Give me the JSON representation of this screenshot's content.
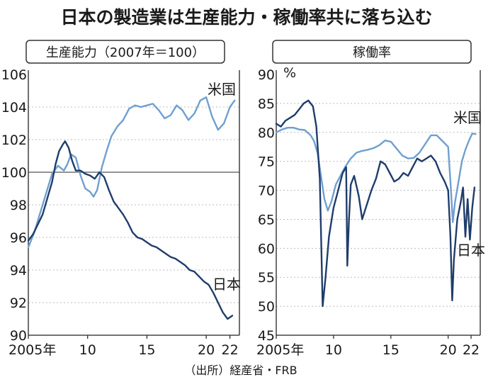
{
  "title": "日本の製造業は生産能力・稼働率共に落ち込む",
  "source": "（出所）経産省・FRB",
  "colors": {
    "japan": "#1f3d6b",
    "us": "#6f9fd0",
    "frame": "#222222",
    "grid": "#bdbdbd",
    "refline": "#555555"
  },
  "chart_data": [
    {
      "type": "line",
      "title": "生産能力（2007年＝100）",
      "xlim": [
        2005,
        2022.8
      ],
      "ylim": [
        90,
        106
      ],
      "yticks": [
        90,
        92,
        94,
        96,
        98,
        100,
        102,
        104,
        106
      ],
      "xticks": [
        {
          "value": 2005,
          "label": "2005年"
        },
        {
          "value": 2010,
          "label": "10"
        },
        {
          "value": 2015,
          "label": "15"
        },
        {
          "value": 2020,
          "label": "20"
        },
        {
          "value": 2022,
          "label": "22"
        }
      ],
      "grid": "dashed horizontal",
      "reference_line": 100,
      "series": [
        {
          "name": "米国",
          "x": [
            2005.0,
            2005.5,
            2006.0,
            2006.5,
            2007.0,
            2007.5,
            2008.0,
            2008.3,
            2008.6,
            2009.0,
            2009.4,
            2009.8,
            2010.2,
            2010.5,
            2010.8,
            2011.2,
            2011.6,
            2012.0,
            2012.5,
            2013.0,
            2013.5,
            2014.0,
            2014.5,
            2015.0,
            2015.5,
            2016.0,
            2016.5,
            2017.0,
            2017.5,
            2018.0,
            2018.5,
            2019.0,
            2019.5,
            2020.0,
            2020.5,
            2021.0,
            2021.5,
            2022.0,
            2022.4
          ],
          "values": [
            95.4,
            96.3,
            97.5,
            98.7,
            99.9,
            100.4,
            100.1,
            100.5,
            101.1,
            100.9,
            99.8,
            99.0,
            98.8,
            98.5,
            98.9,
            100.3,
            101.3,
            102.2,
            102.8,
            103.2,
            103.9,
            104.1,
            104.0,
            104.1,
            104.2,
            103.8,
            103.3,
            103.5,
            104.1,
            103.8,
            103.2,
            103.6,
            104.4,
            104.6,
            103.4,
            102.6,
            103.0,
            104.0,
            104.4
          ]
        },
        {
          "name": "日本",
          "x": [
            2005.0,
            2005.4,
            2005.8,
            2006.2,
            2006.6,
            2007.0,
            2007.3,
            2007.6,
            2007.9,
            2008.1,
            2008.4,
            2008.7,
            2009.0,
            2009.4,
            2009.8,
            2010.2,
            2010.6,
            2011.0,
            2011.4,
            2011.8,
            2012.2,
            2012.6,
            2013.0,
            2013.4,
            2013.8,
            2014.2,
            2014.6,
            2015.0,
            2015.4,
            2015.8,
            2016.2,
            2016.6,
            2017.0,
            2017.4,
            2017.8,
            2018.2,
            2018.6,
            2019.0,
            2019.4,
            2019.8,
            2020.2,
            2020.6,
            2021.0,
            2021.4,
            2021.8,
            2022.2
          ],
          "values": [
            95.8,
            96.2,
            96.8,
            97.4,
            98.4,
            99.4,
            100.5,
            101.3,
            101.7,
            101.9,
            101.5,
            100.7,
            100.1,
            100.1,
            99.9,
            99.8,
            99.6,
            100.0,
            99.7,
            98.9,
            98.2,
            97.8,
            97.4,
            96.9,
            96.3,
            96.0,
            95.9,
            95.7,
            95.5,
            95.4,
            95.2,
            95.0,
            94.8,
            94.7,
            94.5,
            94.3,
            94.0,
            93.9,
            93.6,
            93.3,
            93.1,
            92.6,
            92.0,
            91.4,
            91.0,
            91.2
          ]
        }
      ]
    },
    {
      "type": "line",
      "title": "稼働率",
      "unit": "%",
      "xlim": [
        2005,
        2022.8
      ],
      "ylim": [
        45,
        90
      ],
      "yticks": [
        45,
        50,
        55,
        60,
        65,
        70,
        75,
        80,
        85,
        90
      ],
      "xticks": [
        {
          "value": 2005,
          "label": "2005年"
        },
        {
          "value": 2010,
          "label": "10"
        },
        {
          "value": 2015,
          "label": "15"
        },
        {
          "value": 2020,
          "label": "20"
        },
        {
          "value": 2022,
          "label": "22"
        }
      ],
      "grid": "dashed horizontal",
      "series": [
        {
          "name": "米国",
          "x": [
            2005.0,
            2005.5,
            2006.0,
            2006.5,
            2007.0,
            2007.5,
            2008.0,
            2008.3,
            2008.6,
            2008.9,
            2009.2,
            2009.5,
            2009.8,
            2010.2,
            2010.6,
            2011.0,
            2011.5,
            2012.0,
            2012.5,
            2013.0,
            2013.5,
            2014.0,
            2014.5,
            2015.0,
            2015.5,
            2016.0,
            2016.5,
            2017.0,
            2017.5,
            2018.0,
            2018.5,
            2019.0,
            2019.5,
            2020.0,
            2020.25,
            2020.4,
            2020.6,
            2020.9,
            2021.2,
            2021.5,
            2021.8,
            2022.1,
            2022.4
          ],
          "values": [
            80.0,
            80.5,
            80.8,
            80.8,
            80.5,
            80.4,
            79.5,
            78.5,
            76.5,
            72.5,
            68.5,
            66.5,
            68.0,
            71.0,
            72.5,
            74.0,
            75.5,
            76.5,
            76.8,
            77.0,
            77.3,
            77.8,
            78.6,
            78.4,
            77.2,
            76.0,
            75.5,
            75.6,
            76.5,
            78.0,
            79.5,
            79.5,
            78.5,
            77.5,
            70.0,
            64.5,
            68.0,
            71.5,
            75.0,
            77.0,
            78.5,
            79.8,
            79.7
          ]
        },
        {
          "name": "日本",
          "x": [
            2005.0,
            2005.4,
            2005.8,
            2006.2,
            2006.6,
            2007.0,
            2007.4,
            2007.8,
            2008.2,
            2008.5,
            2008.8,
            2009.05,
            2009.3,
            2009.6,
            2010.0,
            2010.4,
            2010.8,
            2011.1,
            2011.2,
            2011.35,
            2011.5,
            2011.8,
            2012.2,
            2012.5,
            2012.9,
            2013.3,
            2013.7,
            2014.1,
            2014.5,
            2014.9,
            2015.3,
            2015.7,
            2016.1,
            2016.5,
            2016.9,
            2017.3,
            2017.7,
            2018.1,
            2018.5,
            2018.9,
            2019.3,
            2019.7,
            2020.0,
            2020.2,
            2020.35,
            2020.5,
            2020.8,
            2021.1,
            2021.3,
            2021.5,
            2021.7,
            2021.9,
            2022.1,
            2022.3
          ],
          "values": [
            81.5,
            81.0,
            82.0,
            82.5,
            83.0,
            84.0,
            85.0,
            85.5,
            84.5,
            81.0,
            72.0,
            50.0,
            55.0,
            62.0,
            67.0,
            70.0,
            73.0,
            74.0,
            57.0,
            65.0,
            71.0,
            72.5,
            69.0,
            65.0,
            67.5,
            70.0,
            72.0,
            75.0,
            74.5,
            73.0,
            71.5,
            72.0,
            73.0,
            72.5,
            74.0,
            75.5,
            75.0,
            75.5,
            76.0,
            75.0,
            73.0,
            71.5,
            70.0,
            62.0,
            51.0,
            58.0,
            65.0,
            68.0,
            70.5,
            62.0,
            68.5,
            61.5,
            67.0,
            70.5
          ]
        }
      ]
    }
  ]
}
